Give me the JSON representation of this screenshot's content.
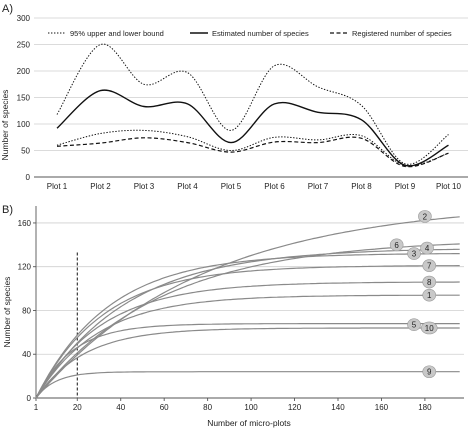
{
  "chart_data": [
    {
      "panel_label": "A)",
      "type": "line",
      "categories": [
        "Plot 1",
        "Plot 2",
        "Plot 3",
        "Plot 4",
        "Plot 5",
        "Plot 6",
        "Plot 7",
        "Plot 8",
        "Plot 9",
        "Plot 10"
      ],
      "ylabel": "Number of species",
      "ylim": [
        0,
        300
      ],
      "yticks": [
        0,
        50,
        100,
        150,
        200,
        250,
        300
      ],
      "grid": true,
      "legend_position": "top",
      "series": [
        {
          "name": "95% upper and lower bound",
          "style": "dotted",
          "values": [
            118,
            250,
            175,
            197,
            88,
            210,
            170,
            135,
            25,
            80
          ]
        },
        {
          "name": "95% upper and lower bound",
          "style": "dotted",
          "show_in_legend": false,
          "values": [
            60,
            82,
            88,
            76,
            50,
            75,
            70,
            78,
            22,
            45
          ]
        },
        {
          "name": "Estimated number of species",
          "style": "solid",
          "values": [
            92,
            163,
            133,
            138,
            65,
            138,
            122,
            108,
            22,
            60
          ]
        },
        {
          "name": "Registered number of species",
          "style": "dashed",
          "values": [
            58,
            64,
            74,
            65,
            47,
            66,
            65,
            73,
            20,
            45
          ]
        }
      ]
    },
    {
      "panel_label": "B)",
      "type": "line",
      "xlabel": "Number of micro-plots",
      "ylabel": "Number of species",
      "xlim": [
        1,
        198
      ],
      "ylim": [
        0,
        170
      ],
      "xticks": [
        1,
        20,
        40,
        60,
        80,
        100,
        120,
        140,
        160,
        180
      ],
      "yticks": [
        0,
        40,
        80,
        120,
        160
      ],
      "grid": true,
      "vline": {
        "x": 20,
        "style": "dashed"
      },
      "series": [
        {
          "name": "2",
          "asymptote": 175,
          "k": 0.013,
          "end": 166
        },
        {
          "name": "6",
          "asymptote": 150,
          "k": 0.0175,
          "end": 141
        },
        {
          "name": "4",
          "asymptote": 137,
          "k": 0.024,
          "end": 136
        },
        {
          "name": "3",
          "asymptote": 133,
          "k": 0.03,
          "end": 132
        },
        {
          "name": "7",
          "asymptote": 121,
          "k": 0.032,
          "end": 121
        },
        {
          "name": "8",
          "asymptote": 107,
          "k": 0.033,
          "end": 106
        },
        {
          "name": "1",
          "asymptote": 94,
          "k": 0.035,
          "end": 94
        },
        {
          "name": "5",
          "asymptote": 67,
          "k": 0.06,
          "end": 68
        },
        {
          "name": "10",
          "asymptote": 64,
          "k": 0.045,
          "end": 64
        },
        {
          "name": "9",
          "asymptote": 24,
          "k": 0.11,
          "end": 24
        }
      ]
    }
  ]
}
